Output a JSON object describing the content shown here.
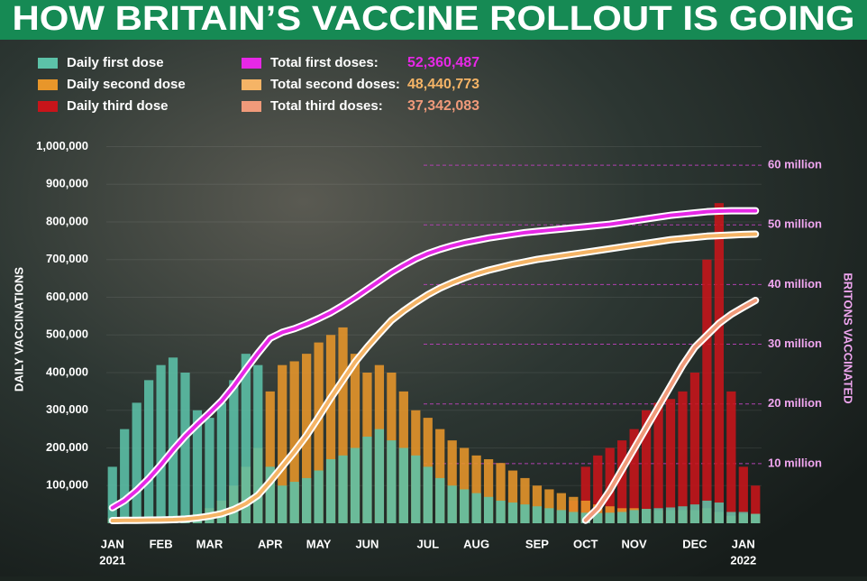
{
  "chart_data": {
    "type": "bar-line",
    "title": "HOW BRITAIN’S VACCINE ROLLOUT IS GOING",
    "y_label": "DAILY VACCINATIONS",
    "y2_label": "BRITONS VACCINATED",
    "categories": [
      "JAN",
      null,
      null,
      null,
      "FEB",
      null,
      null,
      null,
      "MAR",
      null,
      null,
      null,
      null,
      "APR",
      null,
      null,
      null,
      "MAY",
      null,
      null,
      null,
      "JUN",
      null,
      null,
      null,
      null,
      "JUL",
      null,
      null,
      null,
      "AUG",
      null,
      null,
      null,
      null,
      "SEP",
      null,
      null,
      null,
      "OCT",
      null,
      null,
      null,
      "NOV",
      null,
      null,
      null,
      null,
      "DEC",
      null,
      null,
      null,
      "JAN",
      null
    ],
    "years": [
      "2021",
      "2022"
    ],
    "ylim": [
      0,
      1030000
    ],
    "yticks": [
      {
        "value": 100000,
        "label": "100,000"
      },
      {
        "value": 200000,
        "label": "200,000"
      },
      {
        "value": 300000,
        "label": "300,000"
      },
      {
        "value": 400000,
        "label": "400,000"
      },
      {
        "value": 500000,
        "label": "500,000"
      },
      {
        "value": 600000,
        "label": "600,000"
      },
      {
        "value": 700000,
        "label": "700,000"
      },
      {
        "value": 800000,
        "label": "800,000"
      },
      {
        "value": 900000,
        "label": "900,000"
      },
      {
        "value": 1000000,
        "label": "1,000,000"
      }
    ],
    "y2lim": [
      0,
      65000000
    ],
    "y2ticks": [
      {
        "value": 10000000,
        "label": "10 million"
      },
      {
        "value": 20000000,
        "label": "20 million"
      },
      {
        "value": 30000000,
        "label": "30 million"
      },
      {
        "value": 40000000,
        "label": "40 million"
      },
      {
        "value": 50000000,
        "label": "50 million"
      },
      {
        "value": 60000000,
        "label": "60 million"
      }
    ],
    "y2_grid": true,
    "series": [
      {
        "name": "Daily first dose",
        "color": "#5cc2a8",
        "kind": "bar",
        "values": [
          150000,
          250000,
          320000,
          380000,
          420000,
          440000,
          400000,
          300000,
          280000,
          320000,
          380000,
          450000,
          420000,
          150000,
          100000,
          110000,
          120000,
          140000,
          170000,
          180000,
          200000,
          230000,
          250000,
          220000,
          200000,
          180000,
          150000,
          120000,
          100000,
          90000,
          80000,
          70000,
          60000,
          55000,
          50000,
          45000,
          40000,
          35000,
          30000,
          28000,
          27000,
          28000,
          30000,
          35000,
          38000,
          40000,
          42000,
          45000,
          50000,
          60000,
          55000,
          30000,
          30000,
          25000
        ]
      },
      {
        "name": "Daily second dose",
        "color": "#e8962a",
        "kind": "bar",
        "values": [
          15000,
          15000,
          15000,
          15000,
          15000,
          20000,
          20000,
          25000,
          40000,
          60000,
          100000,
          150000,
          200000,
          350000,
          420000,
          430000,
          450000,
          480000,
          500000,
          520000,
          450000,
          400000,
          420000,
          400000,
          350000,
          300000,
          280000,
          250000,
          220000,
          200000,
          180000,
          170000,
          160000,
          140000,
          120000,
          100000,
          90000,
          80000,
          70000,
          60000,
          50000,
          45000,
          40000,
          40000,
          38000,
          35000,
          35000,
          35000,
          35000,
          40000,
          30000,
          20000,
          25000,
          25000
        ]
      },
      {
        "name": "Daily third dose",
        "color": "#c8141a",
        "kind": "bar",
        "values": [
          0,
          0,
          0,
          0,
          0,
          0,
          0,
          0,
          0,
          0,
          0,
          0,
          0,
          0,
          0,
          0,
          0,
          0,
          0,
          0,
          0,
          0,
          0,
          0,
          0,
          0,
          0,
          0,
          0,
          0,
          0,
          0,
          0,
          0,
          0,
          0,
          0,
          0,
          60000,
          150000,
          180000,
          200000,
          220000,
          250000,
          300000,
          320000,
          330000,
          350000,
          400000,
          700000,
          850000,
          350000,
          150000,
          100000
        ]
      },
      {
        "name": "Total first doses:",
        "color": "#e628e6",
        "kind": "line",
        "axis": "y2",
        "total": "52,360,487",
        "values": [
          2600000,
          3800000,
          5500000,
          7500000,
          9800000,
          12300000,
          14600000,
          16600000,
          18500000,
          20500000,
          23000000,
          25800000,
          28500000,
          31000000,
          32000000,
          32600000,
          33400000,
          34300000,
          35300000,
          36500000,
          37800000,
          39200000,
          40600000,
          42000000,
          43200000,
          44300000,
          45200000,
          45900000,
          46500000,
          47000000,
          47400000,
          47800000,
          48100000,
          48400000,
          48700000,
          48900000,
          49100000,
          49300000,
          49500000,
          49700000,
          49900000,
          50100000,
          50400000,
          50700000,
          51000000,
          51300000,
          51600000,
          51800000,
          52000000,
          52200000,
          52300000,
          52350000,
          52360000,
          52360487
        ]
      },
      {
        "name": "Total second doses:",
        "color": "#f5b466",
        "kind": "line",
        "axis": "y2",
        "total": "48,440,773",
        "values": [
          450000,
          500000,
          500000,
          520000,
          550000,
          600000,
          700000,
          900000,
          1200000,
          1600000,
          2300000,
          3300000,
          4700000,
          7000000,
          9500000,
          12000000,
          14700000,
          17800000,
          21000000,
          24000000,
          27000000,
          29500000,
          31800000,
          34000000,
          35600000,
          37000000,
          38300000,
          39400000,
          40300000,
          41100000,
          41800000,
          42400000,
          42900000,
          43400000,
          43800000,
          44200000,
          44500000,
          44800000,
          45100000,
          45400000,
          45700000,
          46000000,
          46300000,
          46600000,
          46900000,
          47200000,
          47500000,
          47700000,
          47900000,
          48100000,
          48200000,
          48300000,
          48400000,
          48440773
        ]
      },
      {
        "name": "Total third doses:",
        "color": "#f09a7a",
        "kind": "line",
        "axis": "y2",
        "total": "37,342,083",
        "values": [
          null,
          null,
          null,
          null,
          null,
          null,
          null,
          null,
          null,
          null,
          null,
          null,
          null,
          null,
          null,
          null,
          null,
          null,
          null,
          null,
          null,
          null,
          null,
          null,
          null,
          null,
          null,
          null,
          null,
          null,
          null,
          null,
          null,
          null,
          null,
          null,
          null,
          null,
          null,
          500000,
          2500000,
          5500000,
          9000000,
          12500000,
          16000000,
          19500000,
          23000000,
          26500000,
          29500000,
          31500000,
          33500000,
          35000000,
          36200000,
          37342083
        ]
      }
    ]
  }
}
